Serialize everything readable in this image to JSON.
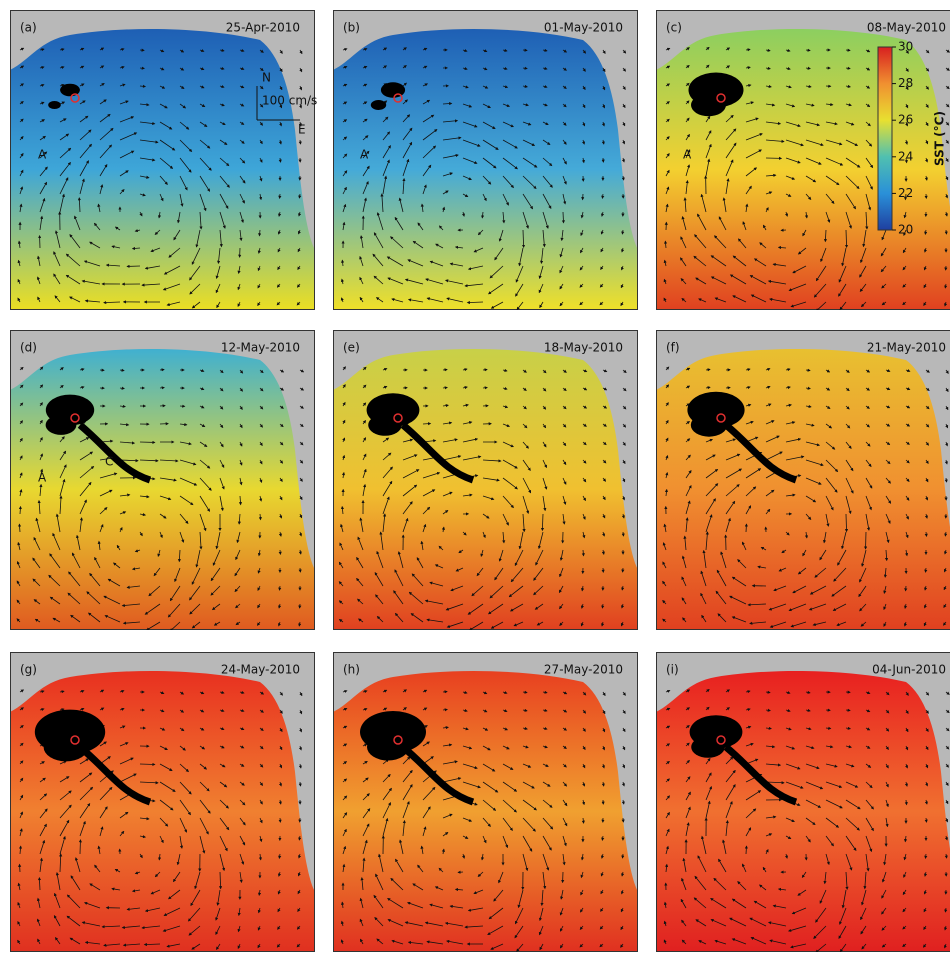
{
  "panels": [
    {
      "label": "(a)",
      "date": "25-Apr-2010",
      "colors": [
        "#1e5fb4",
        "#3ea6d8",
        "#ecdf22"
      ]
    },
    {
      "label": "(b)",
      "date": "01-May-2010",
      "colors": [
        "#1e5fb4",
        "#45aad8",
        "#f0e028"
      ]
    },
    {
      "label": "(c)",
      "date": "08-May-2010",
      "colors": [
        "#8ccf60",
        "#f3d030",
        "#e04020"
      ]
    },
    {
      "label": "(d)",
      "date": "12-May-2010",
      "colors": [
        "#40b0d0",
        "#e8d830",
        "#e05a20"
      ]
    },
    {
      "label": "(e)",
      "date": "18-May-2010",
      "colors": [
        "#c8d048",
        "#f0c030",
        "#e04020"
      ]
    },
    {
      "label": "(f)",
      "date": "21-May-2010",
      "colors": [
        "#e8c030",
        "#f09030",
        "#e04020"
      ]
    },
    {
      "label": "(g)",
      "date": "24-May-2010",
      "colors": [
        "#e83020",
        "#f08030",
        "#e03020"
      ]
    },
    {
      "label": "(h)",
      "date": "27-May-2010",
      "colors": [
        "#e84020",
        "#f0a030",
        "#e03020"
      ]
    },
    {
      "label": "(i)",
      "date": "04-Jun-2010",
      "colors": [
        "#e82020",
        "#f07030",
        "#e02020"
      ]
    }
  ],
  "annotations": {
    "north": "N",
    "east": "E",
    "scale": "100 cm/s",
    "a_marks": [
      "A",
      "A",
      "A",
      "A"
    ],
    "c_mark": "C"
  },
  "colorbar": {
    "title": "SST (°C)",
    "lim": [
      20,
      30
    ],
    "ticks": [
      20,
      22,
      24,
      26,
      28,
      30
    ]
  }
}
